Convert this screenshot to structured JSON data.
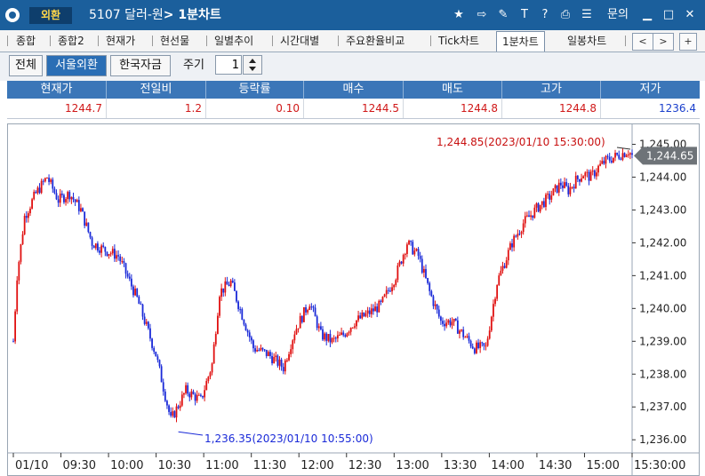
{
  "window": {
    "tag": "외환",
    "title_code": "5107 달러-원",
    "title_suffix": "> 1분차트",
    "inquiry": "문의",
    "icons": [
      "star-icon",
      "export-icon",
      "tools-icon",
      "text-icon",
      "help-icon",
      "print-icon",
      "list-icon",
      "minimize-icon",
      "maximize-icon",
      "close-icon"
    ]
  },
  "tabs": [
    {
      "label": "종합"
    },
    {
      "label": "종합2"
    },
    {
      "label": "현재가"
    },
    {
      "label": "현선물"
    },
    {
      "label": "일별추이"
    },
    {
      "label": "시간대별"
    },
    {
      "label": "주요환율비교"
    },
    {
      "label": "Tick차트"
    },
    {
      "label": "1분차트",
      "active": true
    },
    {
      "label": "일봉차트"
    }
  ],
  "tab_nav": {
    "prev": "<",
    "next": ">",
    "add": "+"
  },
  "toolbar": {
    "filters": [
      {
        "label": "전체"
      },
      {
        "label": "서울외환",
        "selected": true
      },
      {
        "label": "한국자금"
      }
    ],
    "period_label": "주기",
    "period_value": "1"
  },
  "quote": {
    "headers": [
      "현재가",
      "전일비",
      "등락률",
      "매수",
      "매도",
      "고가",
      "저가"
    ],
    "values": [
      "1244.7",
      "1.2",
      "0.10",
      "1244.5",
      "1244.8",
      "1244.8",
      "1236.4"
    ],
    "up_color": "#d01818",
    "down_color": "#1a3fcc"
  },
  "chart_data": {
    "type": "candlestick",
    "y_range": [
      1235.6,
      1245.5
    ],
    "y_ticks": [
      "1,245.00",
      "1,244.00",
      "1,243.00",
      "1,242.00",
      "1,241.00",
      "1,240.00",
      "1,239.00",
      "1,238.00",
      "1,237.00",
      "1,236.00"
    ],
    "x_ticks": [
      "01/10",
      "09:30",
      "10:00",
      "10:30",
      "11:00",
      "11:30",
      "12:00",
      "12:30",
      "13:00",
      "13:30",
      "14:00",
      "14:30",
      "15:00",
      "15:30:00"
    ],
    "current_price_label": "1,244.65",
    "current_price": 1244.65,
    "high_annotation": {
      "text": "1,244.85(2023/01/10 15:30:00)",
      "value": 1244.85
    },
    "low_annotation": {
      "text": "1,236.35(2023/01/10 10:55:00)",
      "value": 1236.35
    },
    "path_x_minutes": [
      0,
      2,
      6,
      12,
      18,
      24,
      30,
      36,
      42,
      48,
      56,
      66,
      76,
      84,
      92,
      100,
      106,
      110,
      116,
      122,
      128,
      136,
      144,
      150,
      158,
      164,
      170,
      176,
      182,
      188,
      196,
      204,
      210,
      216,
      222,
      228,
      234,
      240,
      246,
      252,
      258,
      266,
      272,
      280,
      286,
      292,
      296,
      300,
      304,
      308,
      312,
      314,
      316,
      318,
      320,
      322,
      324,
      326,
      328,
      330
    ],
    "path_values": [
      1239.0,
      1241.0,
      1242.8,
      1243.5,
      1244.0,
      1243.3,
      1243.5,
      1243.0,
      1242.0,
      1241.8,
      1241.6,
      1240.3,
      1238.6,
      1236.6,
      1237.5,
      1237.2,
      1238.3,
      1240.5,
      1240.8,
      1239.8,
      1238.8,
      1238.6,
      1238.2,
      1239.3,
      1240.2,
      1239.2,
      1239.0,
      1239.2,
      1239.6,
      1239.8,
      1240.1,
      1241.0,
      1242.0,
      1241.6,
      1240.5,
      1239.6,
      1239.6,
      1239.2,
      1238.8,
      1238.8,
      1240.8,
      1242.0,
      1242.6,
      1243.1,
      1243.4,
      1243.8,
      1243.6,
      1243.9,
      1244.1,
      1244.0,
      1244.3,
      1244.4,
      1244.5,
      1244.55,
      1244.6,
      1244.65,
      1244.7,
      1244.75,
      1244.8,
      1244.65
    ],
    "total_minutes": 330
  }
}
